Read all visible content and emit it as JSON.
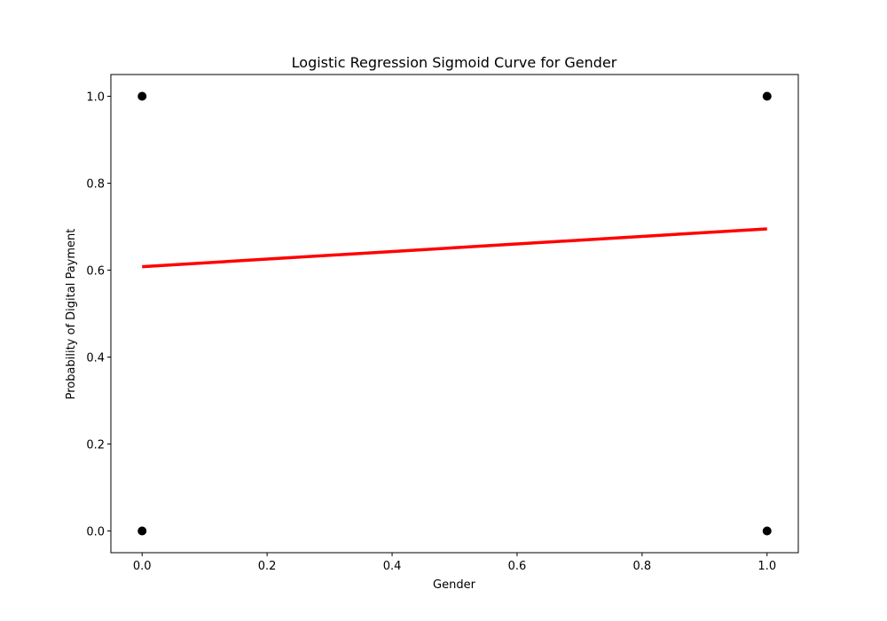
{
  "chart_data": {
    "type": "scatter",
    "title": "Logistic Regression Sigmoid Curve for Gender",
    "xlabel": "Gender",
    "ylabel": "Probability of Digital Payment",
    "xlim": [
      -0.05,
      1.05
    ],
    "ylim": [
      -0.05,
      1.05
    ],
    "x_ticks": [
      0.0,
      0.2,
      0.4,
      0.6,
      0.8,
      1.0
    ],
    "x_tick_labels": [
      "0.0",
      "0.2",
      "0.4",
      "0.6",
      "0.8",
      "1.0"
    ],
    "y_ticks": [
      0.0,
      0.2,
      0.4,
      0.6,
      0.8,
      1.0
    ],
    "y_tick_labels": [
      "0.0",
      "0.2",
      "0.4",
      "0.6",
      "0.8",
      "1.0"
    ],
    "grid": false,
    "legend": "none",
    "series": [
      {
        "kind": "scatter",
        "color": "#000000",
        "points": [
          {
            "x": 0.0,
            "y": 1.0
          },
          {
            "x": 0.0,
            "y": 0.0
          },
          {
            "x": 1.0,
            "y": 1.0
          },
          {
            "x": 1.0,
            "y": 0.0
          }
        ]
      },
      {
        "kind": "line",
        "color": "#ff0000",
        "points": [
          {
            "x": 0.0,
            "y": 0.608
          },
          {
            "x": 1.0,
            "y": 0.695
          }
        ]
      }
    ]
  }
}
